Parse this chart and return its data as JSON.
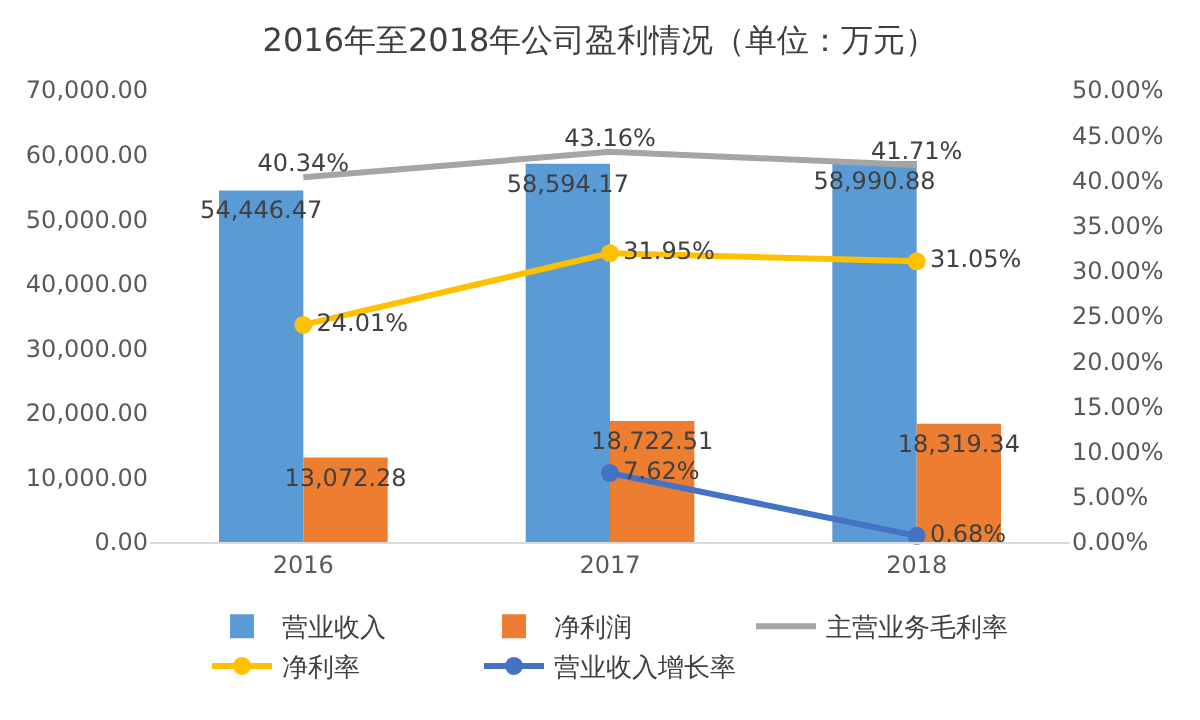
{
  "chart_data": {
    "type": "bar",
    "title": "2016年至2018年公司盈利情况（单位：万元）",
    "categories": [
      "2016",
      "2017",
      "2018"
    ],
    "series": [
      {
        "name": "营业收入",
        "color": "#5b9bd5",
        "values": [
          54446.47,
          58594.17,
          58990.88
        ],
        "value_labels": [
          "54,446.47",
          "58,594.17",
          "58,990.88"
        ]
      },
      {
        "name": "净利润",
        "color": "#ed7d31",
        "values": [
          13072.28,
          18722.51,
          18319.34
        ],
        "value_labels": [
          "13,072.28",
          "18,722.51",
          "18,319.34"
        ]
      },
      {
        "name": "主营业务毛利率",
        "type": "line",
        "axis": "y2",
        "color": "#a5a5a5",
        "marker": "none",
        "values": [
          40.34,
          43.16,
          41.71
        ],
        "value_labels": [
          "40.34%",
          "43.16%",
          "41.71%"
        ]
      },
      {
        "name": "净利率",
        "type": "line",
        "axis": "y2",
        "color": "#ffc000",
        "marker": "circle",
        "values": [
          24.01,
          31.95,
          31.05
        ],
        "value_labels": [
          "24.01%",
          "31.95%",
          "31.05%"
        ]
      },
      {
        "name": "营业收入增长率",
        "type": "line",
        "axis": "y2",
        "color": "#4472c4",
        "marker": "circle",
        "values": [
          null,
          7.62,
          0.68
        ],
        "value_labels": [
          null,
          "7.62%",
          "0.68%"
        ]
      }
    ],
    "ylim": [
      0,
      70000
    ],
    "yticks": [
      {
        "value": 0,
        "label": "0.00"
      },
      {
        "value": 10000,
        "label": "10,000.00"
      },
      {
        "value": 20000,
        "label": "20,000.00"
      },
      {
        "value": 30000,
        "label": "30,000.00"
      },
      {
        "value": 40000,
        "label": "40,000.00"
      },
      {
        "value": 50000,
        "label": "50,000.00"
      },
      {
        "value": 60000,
        "label": "60,000.00"
      },
      {
        "value": 70000,
        "label": "70,000.00"
      }
    ],
    "y2lim": [
      0,
      50
    ],
    "y2ticks": [
      {
        "value": 0,
        "label": "0.00%"
      },
      {
        "value": 5,
        "label": "5.00%"
      },
      {
        "value": 10,
        "label": "10.00%"
      },
      {
        "value": 15,
        "label": "15.00%"
      },
      {
        "value": 20,
        "label": "20.00%"
      },
      {
        "value": 25,
        "label": "25.00%"
      },
      {
        "value": 30,
        "label": "30.00%"
      },
      {
        "value": 35,
        "label": "35.00%"
      },
      {
        "value": 40,
        "label": "40.00%"
      },
      {
        "value": 45,
        "label": "45.00%"
      },
      {
        "value": 50,
        "label": "50.00%"
      }
    ],
    "grid": false,
    "legend": "bottom"
  }
}
